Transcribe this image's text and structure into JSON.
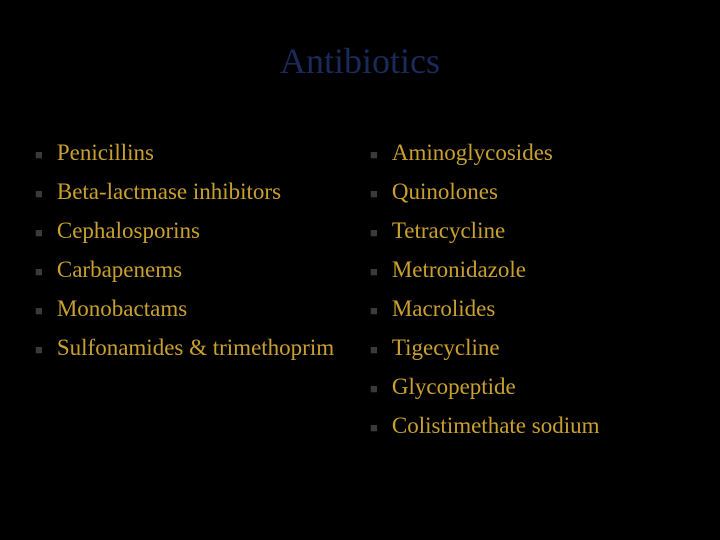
{
  "slide": {
    "title": "Antibiotics",
    "background_color": "#000000",
    "title_color": "#1a2a5a",
    "title_fontsize": 36,
    "text_color": "#c9a030",
    "text_fontsize": 23,
    "bullet_color": "#3a3a3a",
    "bullet_char": "■",
    "columns": [
      {
        "items": [
          "Penicillins",
          "Beta-lactmase inhibitors",
          "Cephalosporins",
          "Carbapenems",
          "Monobactams",
          "Sulfonamides & trimethoprim"
        ]
      },
      {
        "items": [
          "Aminoglycosides",
          "Quinolones",
          "Tetracycline",
          "Metronidazole",
          "Macrolides",
          "Tigecycline",
          "Glycopeptide",
          " Colistimethate sodium"
        ]
      }
    ]
  }
}
